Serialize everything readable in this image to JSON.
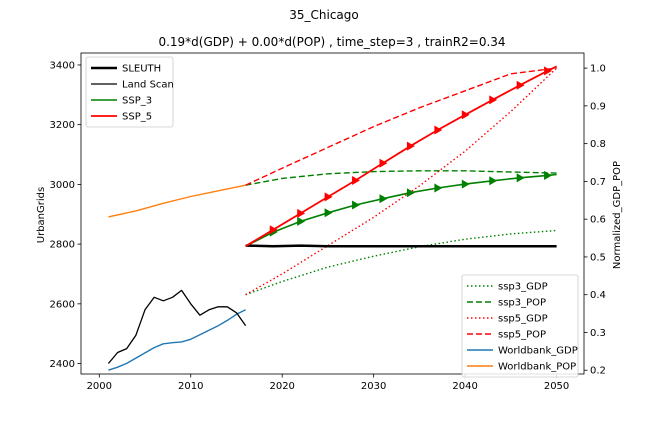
{
  "chart_data": {
    "type": "line",
    "suptitle": "35_Chicago",
    "title": "0.19*d(GDP) + 0.00*d(POP) , time_step=3 , trainR2=0.34",
    "xlim": [
      1998,
      2053
    ],
    "x_ticks": [
      2000,
      2010,
      2020,
      2030,
      2040,
      2050
    ],
    "left_axis": {
      "label": "UrbanGrids",
      "ylim": [
        2365,
        3440
      ],
      "ticks": [
        2400,
        2600,
        2800,
        3000,
        3200,
        3400
      ]
    },
    "right_axis": {
      "label": "Normalized_GDP_POP",
      "ylim": [
        0.19,
        1.04
      ],
      "ticks": [
        0.2,
        0.3,
        0.4,
        0.5,
        0.6,
        0.7,
        0.8,
        0.9,
        1.0
      ],
      "tick_labels": [
        "0.2",
        "0.3",
        "0.4",
        "0.5",
        "0.6",
        "0.7",
        "0.8",
        "0.9",
        "1.0"
      ]
    },
    "left_series": [
      {
        "name": "SLEUTH",
        "color": "#000000",
        "style": "solid",
        "width": 2.5,
        "x": [
          2016,
          2019,
          2022,
          2025,
          2028,
          2031,
          2034,
          2037,
          2040,
          2043,
          2046,
          2050
        ],
        "y": [
          2795,
          2793,
          2795,
          2793,
          2793,
          2793,
          2793,
          2793,
          2793,
          2793,
          2793,
          2793
        ]
      },
      {
        "name": "Land Scan",
        "color": "#000000",
        "style": "solid",
        "width": 1.3,
        "x": [
          2001,
          2002,
          2003,
          2004,
          2005,
          2006,
          2007,
          2008,
          2009,
          2010,
          2011,
          2012,
          2013,
          2014,
          2015,
          2016
        ],
        "y": [
          2400,
          2437,
          2450,
          2495,
          2580,
          2622,
          2610,
          2622,
          2645,
          2600,
          2562,
          2580,
          2590,
          2590,
          2570,
          2527
        ]
      },
      {
        "name": "SSP_3",
        "color": "#008000",
        "style": "solid",
        "width": 1.6,
        "marker": "triangle",
        "x": [
          2016,
          2019,
          2022,
          2025,
          2028,
          2031,
          2034,
          2037,
          2040,
          2043,
          2046,
          2049,
          2050
        ],
        "y": [
          2793,
          2840,
          2876,
          2905,
          2931,
          2952,
          2972,
          2988,
          3001,
          3012,
          3022,
          3030,
          3033
        ]
      },
      {
        "name": "SSP_5",
        "color": "#ff0000",
        "style": "solid",
        "width": 1.8,
        "marker": "triangle",
        "x": [
          2016,
          2019,
          2022,
          2025,
          2028,
          2031,
          2034,
          2037,
          2040,
          2043,
          2046,
          2049,
          2050
        ],
        "y": [
          2793,
          2848,
          2903,
          2958,
          3013,
          3071,
          3128,
          3182,
          3233,
          3283,
          3332,
          3380,
          3395
        ]
      }
    ],
    "right_series": [
      {
        "name": "ssp3_GDP",
        "color": "#008000",
        "style": "dotted",
        "x": [
          2016,
          2020,
          2025,
          2030,
          2035,
          2040,
          2045,
          2050
        ],
        "y": [
          0.4,
          0.435,
          0.473,
          0.502,
          0.527,
          0.547,
          0.561,
          0.57
        ]
      },
      {
        "name": "ssp3_POP",
        "color": "#008000",
        "style": "dashed",
        "x": [
          2016,
          2020,
          2025,
          2030,
          2035,
          2040,
          2045,
          2050
        ],
        "y": [
          0.69,
          0.708,
          0.72,
          0.726,
          0.728,
          0.728,
          0.725,
          0.722
        ]
      },
      {
        "name": "ssp5_GDP",
        "color": "#ff0000",
        "style": "dotted",
        "x": [
          2016,
          2020,
          2025,
          2030,
          2035,
          2040,
          2045,
          2050
        ],
        "y": [
          0.4,
          0.455,
          0.53,
          0.605,
          0.688,
          0.78,
          0.885,
          1.0
        ]
      },
      {
        "name": "ssp5_POP",
        "color": "#ff0000",
        "style": "dashed",
        "x": [
          2016,
          2020,
          2025,
          2030,
          2035,
          2040,
          2045,
          2050
        ],
        "y": [
          0.69,
          0.735,
          0.79,
          0.845,
          0.895,
          0.94,
          0.985,
          1.0
        ]
      },
      {
        "name": "Worldbank_GDP",
        "color": "#1f77b4",
        "style": "solid",
        "x": [
          2001,
          2002,
          2003,
          2004,
          2005,
          2006,
          2007,
          2008,
          2009,
          2010,
          2011,
          2012,
          2013,
          2014,
          2015,
          2016
        ],
        "y": [
          0.2,
          0.208,
          0.218,
          0.232,
          0.246,
          0.26,
          0.27,
          0.273,
          0.275,
          0.282,
          0.294,
          0.306,
          0.318,
          0.332,
          0.348,
          0.36
        ]
      },
      {
        "name": "Worldbank_POP",
        "color": "#ff7f0e",
        "style": "solid",
        "x": [
          2001,
          2004,
          2007,
          2010,
          2013,
          2016
        ],
        "y": [
          0.606,
          0.622,
          0.642,
          0.66,
          0.675,
          0.69
        ]
      }
    ],
    "legends": {
      "left": {
        "placement": "upper-left",
        "entries": [
          "SLEUTH",
          "Land Scan",
          "SSP_3",
          "SSP_5"
        ]
      },
      "right": {
        "placement": "lower-right",
        "entries": [
          "ssp3_GDP",
          "ssp3_POP",
          "ssp5_GDP",
          "ssp5_POP",
          "Worldbank_GDP",
          "Worldbank_POP"
        ]
      }
    },
    "grid": false
  }
}
